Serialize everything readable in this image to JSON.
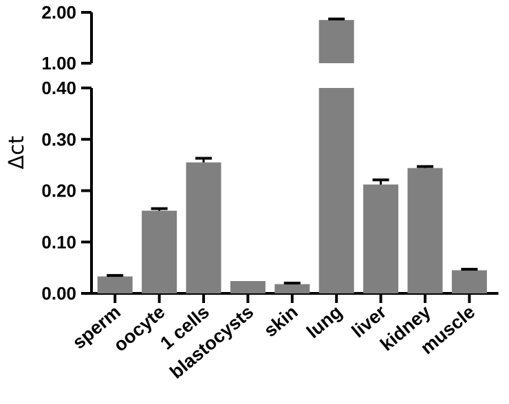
{
  "chart_data": {
    "type": "bar",
    "title": "",
    "xlabel": "",
    "ylabel": "Δct",
    "categories": [
      "sperm",
      "oocyte",
      "1 cells",
      "blastocysts",
      "skin",
      "lung",
      "liver",
      "kidney",
      "muscle"
    ],
    "values": [
      0.033,
      0.161,
      0.255,
      0.024,
      0.018,
      1.85,
      0.212,
      0.244,
      0.045
    ],
    "errors": [
      0.002,
      0.004,
      0.008,
      0.0,
      0.002,
      0.02,
      0.009,
      0.003,
      0.002
    ],
    "y_axis_broken": true,
    "ylim_lower": [
      0,
      0.4
    ],
    "ylim_upper": [
      1.0,
      2.0
    ],
    "y_ticks_lower": [
      "0.00",
      "0.10",
      "0.20",
      "0.30",
      "0.40"
    ],
    "y_ticks_upper": [
      "1.00",
      "2.00"
    ],
    "bar_color": "#808080",
    "error_bar_color": "#000000",
    "grid": false,
    "legend": "none"
  }
}
